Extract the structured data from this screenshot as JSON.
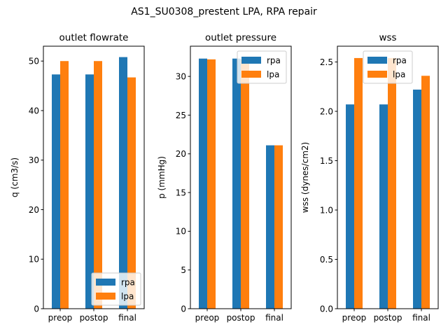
{
  "suptitle": "AS1_SU0308_prestent LPA, RPA repair",
  "colors": {
    "rpa": "#1f77b4",
    "lpa": "#ff7f0e"
  },
  "chart_data": [
    {
      "type": "bar",
      "title": "outlet flowrate",
      "xlabel": "",
      "ylabel": "q (cm3/s)",
      "categories": [
        "preop",
        "postop",
        "final"
      ],
      "ylim": [
        0,
        53
      ],
      "yticks": [
        0,
        10,
        20,
        30,
        40,
        50
      ],
      "ytick_labels": [
        "0",
        "10",
        "20",
        "30",
        "40",
        "50"
      ],
      "legend_loc": "lower-right",
      "series": [
        {
          "name": "rpa",
          "values": [
            47.3,
            47.3,
            50.8
          ]
        },
        {
          "name": "lpa",
          "values": [
            50.0,
            50.0,
            46.7
          ]
        }
      ]
    },
    {
      "type": "bar",
      "title": "outlet pressure",
      "xlabel": "",
      "ylabel": "p (mmHg)",
      "categories": [
        "preop",
        "postop",
        "final"
      ],
      "ylim": [
        0,
        33.9
      ],
      "yticks": [
        0,
        5,
        10,
        15,
        20,
        25,
        30
      ],
      "ytick_labels": [
        "0",
        "5",
        "10",
        "15",
        "20",
        "25",
        "30"
      ],
      "legend_loc": "top-right",
      "series": [
        {
          "name": "rpa",
          "values": [
            32.3,
            32.3,
            21.1
          ]
        },
        {
          "name": "lpa",
          "values": [
            32.2,
            32.2,
            21.1
          ]
        }
      ]
    },
    {
      "type": "bar",
      "title": "wss",
      "xlabel": "",
      "ylabel": "wss (dynes/cm2)",
      "categories": [
        "preop",
        "postop",
        "final"
      ],
      "ylim": [
        0,
        2.66
      ],
      "yticks": [
        0.0,
        0.5,
        1.0,
        1.5,
        2.0,
        2.5
      ],
      "ytick_labels": [
        "0.0",
        "0.5",
        "1.0",
        "1.5",
        "2.0",
        "2.5"
      ],
      "legend_loc": "top-center",
      "series": [
        {
          "name": "rpa",
          "values": [
            2.07,
            2.07,
            2.22
          ]
        },
        {
          "name": "lpa",
          "values": [
            2.54,
            2.54,
            2.36
          ]
        }
      ]
    }
  ]
}
